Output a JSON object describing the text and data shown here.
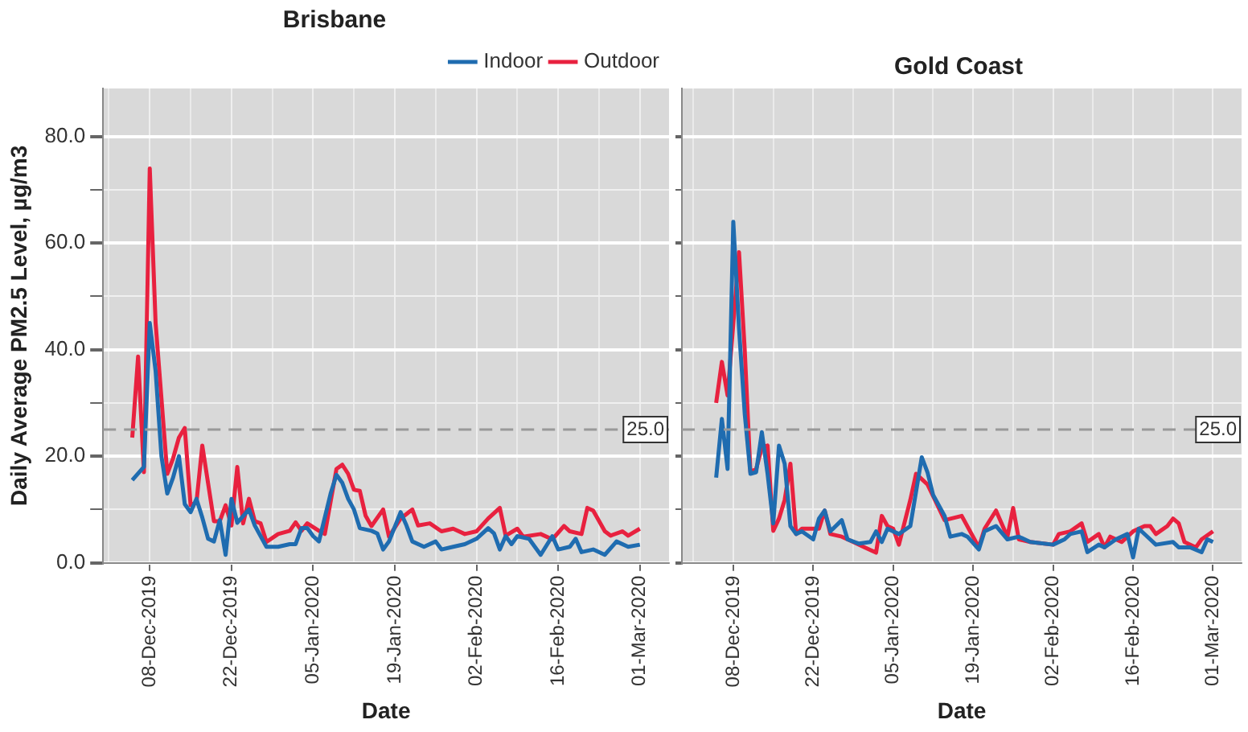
{
  "chart_data": [
    {
      "type": "line",
      "title": "Brisbane",
      "xlabel": "Date",
      "ylabel": "Daily Average PM2.5 Level, µg/m3",
      "legend": "top right",
      "grid": true,
      "line_style": "solid",
      "marker": "none",
      "xlim": [
        "2019-11-30",
        "2020-03-06"
      ],
      "xticks": [
        {
          "value": "2019-12-01",
          "label": null
        },
        {
          "value": "2019-12-08",
          "label": "08-Dec-2019"
        },
        {
          "value": "2019-12-15",
          "label": null
        },
        {
          "value": "2019-12-22",
          "label": "22-Dec-2019"
        },
        {
          "value": "2019-12-29",
          "label": null
        },
        {
          "value": "2020-01-05",
          "label": "05-Jan-2020"
        },
        {
          "value": "2020-01-12",
          "label": null
        },
        {
          "value": "2020-01-19",
          "label": "19-Jan-2020"
        },
        {
          "value": "2020-01-26",
          "label": null
        },
        {
          "value": "2020-02-02",
          "label": "02-Feb-2020"
        },
        {
          "value": "2020-02-09",
          "label": null
        },
        {
          "value": "2020-02-16",
          "label": "16-Feb-2020"
        },
        {
          "value": "2020-02-23",
          "label": null
        },
        {
          "value": "2020-03-01",
          "label": "01-Mar-2020"
        }
      ],
      "ylim": [
        0,
        89
      ],
      "yticks": [
        {
          "value": 0,
          "label": "0.0"
        },
        {
          "value": 10,
          "label": null
        },
        {
          "value": 20,
          "label": "20.0"
        },
        {
          "value": 30,
          "label": null
        },
        {
          "value": 40,
          "label": "40.0"
        },
        {
          "value": 50,
          "label": null
        },
        {
          "value": 60,
          "label": "60.0"
        },
        {
          "value": 70,
          "label": null
        },
        {
          "value": 80,
          "label": "80.0"
        }
      ],
      "ref_lines": [
        {
          "axis": "y",
          "value": 25,
          "label": "25.0",
          "color": "#999999",
          "line_style": "dashed"
        }
      ],
      "series": [
        {
          "name": "Indoor",
          "color": "#1f6cb0",
          "x": [
            "2019-12-05",
            "2019-12-07",
            "2019-12-08",
            "2019-12-09",
            "2019-12-10",
            "2019-12-11",
            "2019-12-12",
            "2019-12-13",
            "2019-12-14",
            "2019-12-15",
            "2019-12-16",
            "2019-12-17",
            "2019-12-18",
            "2019-12-19",
            "2019-12-20",
            "2019-12-21",
            "2019-12-22",
            "2019-12-23",
            "2019-12-25",
            "2019-12-26",
            "2019-12-28",
            "2019-12-30",
            "2020-01-01",
            "2020-01-02",
            "2020-01-03",
            "2020-01-04",
            "2020-01-05",
            "2020-01-06",
            "2020-01-08",
            "2020-01-09",
            "2020-01-10",
            "2020-01-11",
            "2020-01-12",
            "2020-01-13",
            "2020-01-15",
            "2020-01-16",
            "2020-01-17",
            "2020-01-18",
            "2020-01-20",
            "2020-01-21",
            "2020-01-22",
            "2020-01-24",
            "2020-01-26",
            "2020-01-27",
            "2020-01-29",
            "2020-01-31",
            "2020-02-02",
            "2020-02-04",
            "2020-02-05",
            "2020-02-06",
            "2020-02-07",
            "2020-02-08",
            "2020-02-09",
            "2020-02-11",
            "2020-02-13",
            "2020-02-15",
            "2020-02-16",
            "2020-02-18",
            "2020-02-19",
            "2020-02-20",
            "2020-02-22",
            "2020-02-24",
            "2020-02-26",
            "2020-02-28",
            "2020-03-01"
          ],
          "values": [
            15.5,
            18,
            45,
            36,
            20,
            13,
            16,
            20,
            11,
            9.5,
            12,
            8.5,
            4.5,
            4,
            8,
            1.5,
            12,
            7.5,
            10,
            7,
            3,
            3,
            3.5,
            3.5,
            6.5,
            6.5,
            5,
            4,
            13,
            16.5,
            15,
            12,
            10,
            6.5,
            6,
            5.5,
            2.5,
            4,
            9.5,
            7,
            4,
            3,
            4,
            2.5,
            3,
            3.5,
            4.5,
            6.5,
            5.5,
            2.5,
            5,
            3.5,
            5,
            4.5,
            1.5,
            5,
            2.5,
            3,
            4.5,
            2,
            2.5,
            1.5,
            4,
            3,
            3.4
          ]
        },
        {
          "name": "Outdoor",
          "color": "#e8213f",
          "x": [
            "2019-12-05",
            "2019-12-06",
            "2019-12-07",
            "2019-12-08",
            "2019-12-09",
            "2019-12-11",
            "2019-12-12",
            "2019-12-13",
            "2019-12-14",
            "2019-12-15",
            "2019-12-16",
            "2019-12-17",
            "2019-12-19",
            "2019-12-20",
            "2019-12-21",
            "2019-12-22",
            "2019-12-23",
            "2019-12-24",
            "2019-12-25",
            "2019-12-26",
            "2019-12-27",
            "2019-12-28",
            "2019-12-30",
            "2020-01-01",
            "2020-01-02",
            "2020-01-03",
            "2020-01-04",
            "2020-01-06",
            "2020-01-07",
            "2020-01-09",
            "2020-01-10",
            "2020-01-11",
            "2020-01-12",
            "2020-01-13",
            "2020-01-14",
            "2020-01-15",
            "2020-01-17",
            "2020-01-18",
            "2020-01-20",
            "2020-01-22",
            "2020-01-23",
            "2020-01-25",
            "2020-01-27",
            "2020-01-29",
            "2020-01-31",
            "2020-02-02",
            "2020-02-04",
            "2020-02-06",
            "2020-02-07",
            "2020-02-09",
            "2020-02-10",
            "2020-02-13",
            "2020-02-15",
            "2020-02-17",
            "2020-02-18",
            "2020-02-20",
            "2020-02-21",
            "2020-02-22",
            "2020-02-24",
            "2020-02-25",
            "2020-02-27",
            "2020-02-28",
            "2020-03-01"
          ],
          "values": [
            23.5,
            38.7,
            17,
            74,
            45,
            16.7,
            19.6,
            23.5,
            25.3,
            10.8,
            11.3,
            22,
            7.8,
            7.8,
            10.8,
            7,
            18,
            7.4,
            12,
            7.8,
            7.4,
            3.9,
            5.4,
            6,
            7.6,
            6,
            7.4,
            6,
            5.4,
            17.6,
            18.4,
            16.7,
            13.7,
            13.5,
            8.8,
            6.9,
            10,
            4.9,
            8.3,
            10,
            7,
            7.4,
            5.9,
            6.4,
            5.4,
            5.9,
            8.3,
            10.3,
            5.1,
            6.4,
            4.9,
            5.4,
            4.4,
            6.9,
            5.9,
            5.4,
            10.3,
            9.8,
            5.9,
            5.1,
            5.9,
            5.1,
            6.4
          ]
        }
      ]
    },
    {
      "type": "line",
      "title": "Gold Coast",
      "xlabel": "Date",
      "legend": false,
      "grid": true,
      "tick_labels": "x",
      "line_style": "solid",
      "marker": "none",
      "xlim": [
        "2019-11-29",
        "2020-03-06"
      ],
      "xticks": [
        {
          "value": "2019-12-01",
          "label": null
        },
        {
          "value": "2019-12-08",
          "label": "08-Dec-2019"
        },
        {
          "value": "2019-12-15",
          "label": null
        },
        {
          "value": "2019-12-22",
          "label": "22-Dec-2019"
        },
        {
          "value": "2019-12-29",
          "label": null
        },
        {
          "value": "2020-01-05",
          "label": "05-Jan-2020"
        },
        {
          "value": "2020-01-12",
          "label": null
        },
        {
          "value": "2020-01-19",
          "label": "19-Jan-2020"
        },
        {
          "value": "2020-01-26",
          "label": null
        },
        {
          "value": "2020-02-02",
          "label": "02-Feb-2020"
        },
        {
          "value": "2020-02-09",
          "label": null
        },
        {
          "value": "2020-02-16",
          "label": "16-Feb-2020"
        },
        {
          "value": "2020-02-23",
          "label": null
        },
        {
          "value": "2020-03-01",
          "label": "01-Mar-2020"
        }
      ],
      "ylim": [
        0,
        89
      ],
      "yticks": [
        {
          "value": 0,
          "label": null
        },
        {
          "value": 10,
          "label": null
        },
        {
          "value": 20,
          "label": null
        },
        {
          "value": 30,
          "label": null
        },
        {
          "value": 40,
          "label": null
        },
        {
          "value": 50,
          "label": null
        },
        {
          "value": 60,
          "label": null
        },
        {
          "value": 70,
          "label": null
        },
        {
          "value": 80,
          "label": null
        }
      ],
      "ref_lines": [
        {
          "axis": "y",
          "value": 25,
          "label": "25.0",
          "color": "#999999",
          "line_style": "dashed"
        }
      ],
      "series": [
        {
          "color": "#1f6cb0",
          "x": [
            "2019-12-05",
            "2019-12-06",
            "2019-12-07",
            "2019-12-08",
            "2019-12-09",
            "2019-12-10",
            "2019-12-11",
            "2019-12-12",
            "2019-12-13",
            "2019-12-14",
            "2019-12-15",
            "2019-12-16",
            "2019-12-17",
            "2019-12-18",
            "2019-12-19",
            "2019-12-20",
            "2019-12-22",
            "2019-12-23",
            "2019-12-24",
            "2019-12-25",
            "2019-12-27",
            "2019-12-28",
            "2019-12-30",
            "2020-01-01",
            "2020-01-02",
            "2020-01-03",
            "2020-01-04",
            "2020-01-06",
            "2020-01-08",
            "2020-01-10",
            "2020-01-11",
            "2020-01-12",
            "2020-01-14",
            "2020-01-15",
            "2020-01-17",
            "2020-01-18",
            "2020-01-20",
            "2020-01-21",
            "2020-01-23",
            "2020-01-25",
            "2020-01-27",
            "2020-01-29",
            "2020-02-02",
            "2020-02-04",
            "2020-02-05",
            "2020-02-07",
            "2020-02-08",
            "2020-02-10",
            "2020-02-11",
            "2020-02-13",
            "2020-02-15",
            "2020-02-16",
            "2020-02-17",
            "2020-02-19",
            "2020-02-20",
            "2020-02-23",
            "2020-02-24",
            "2020-02-26",
            "2020-02-28",
            "2020-02-29",
            "2020-03-01"
          ],
          "values": [
            16,
            27,
            17.6,
            64,
            44,
            28,
            16.7,
            17,
            24.5,
            16.7,
            7.4,
            22,
            18.6,
            6.9,
            5.4,
            5.9,
            4.4,
            8.3,
            9.8,
            5.9,
            8,
            4.4,
            3.6,
            3.9,
            5.9,
            3.9,
            6.4,
            5.4,
            6.9,
            19.8,
            17,
            12.7,
            8.8,
            4.9,
            5.4,
            4.9,
            2.5,
            5.9,
            6.9,
            4.4,
            4.9,
            3.9,
            3.4,
            4.4,
            5.4,
            5.9,
            2,
            3.4,
            2.9,
            4.4,
            5.4,
            1,
            6.4,
            4.4,
            3.4,
            3.9,
            2.9,
            2.9,
            2,
            4.4,
            3.9
          ]
        },
        {
          "color": "#e8213f",
          "x": [
            "2019-12-05",
            "2019-12-06",
            "2019-12-07",
            "2019-12-09",
            "2019-12-10",
            "2019-12-11",
            "2019-12-12",
            "2019-12-13",
            "2019-12-14",
            "2019-12-15",
            "2019-12-16",
            "2019-12-17",
            "2019-12-18",
            "2019-12-19",
            "2019-12-20",
            "2019-12-22",
            "2019-12-23",
            "2019-12-24",
            "2019-12-25",
            "2019-12-27",
            "2019-12-29",
            "2019-12-31",
            "2020-01-02",
            "2020-01-03",
            "2020-01-04",
            "2020-01-05",
            "2020-01-06",
            "2020-01-08",
            "2020-01-09",
            "2020-01-10",
            "2020-01-11",
            "2020-01-12",
            "2020-01-14",
            "2020-01-17",
            "2020-01-20",
            "2020-01-21",
            "2020-01-23",
            "2020-01-25",
            "2020-01-26",
            "2020-01-27",
            "2020-01-29",
            "2020-02-02",
            "2020-02-03",
            "2020-02-05",
            "2020-02-07",
            "2020-02-08",
            "2020-02-10",
            "2020-02-11",
            "2020-02-12",
            "2020-02-14",
            "2020-02-16",
            "2020-02-18",
            "2020-02-19",
            "2020-02-20",
            "2020-02-22",
            "2020-02-23",
            "2020-02-24",
            "2020-02-25",
            "2020-02-27",
            "2020-02-28",
            "2020-03-01"
          ],
          "values": [
            30,
            37.7,
            31.4,
            58.3,
            40,
            17,
            17.6,
            21.6,
            22,
            6,
            8.3,
            11.8,
            18.6,
            5.4,
            6.4,
            6.4,
            6.4,
            9.8,
            5.4,
            4.9,
            3.9,
            2.9,
            1.9,
            8.8,
            6.9,
            6.4,
            3.4,
            11.8,
            16.7,
            15.7,
            14.7,
            12.5,
            8,
            8.8,
            2.9,
            6.4,
            9.8,
            4.9,
            10.3,
            4.4,
            3.9,
            3.4,
            5.4,
            5.9,
            7.4,
            3.9,
            5.4,
            2.9,
            4.9,
            3.9,
            5.9,
            6.9,
            6.9,
            5.4,
            6.9,
            8.3,
            7.4,
            3.9,
            2.9,
            4.4,
            5.9
          ]
        }
      ]
    }
  ]
}
